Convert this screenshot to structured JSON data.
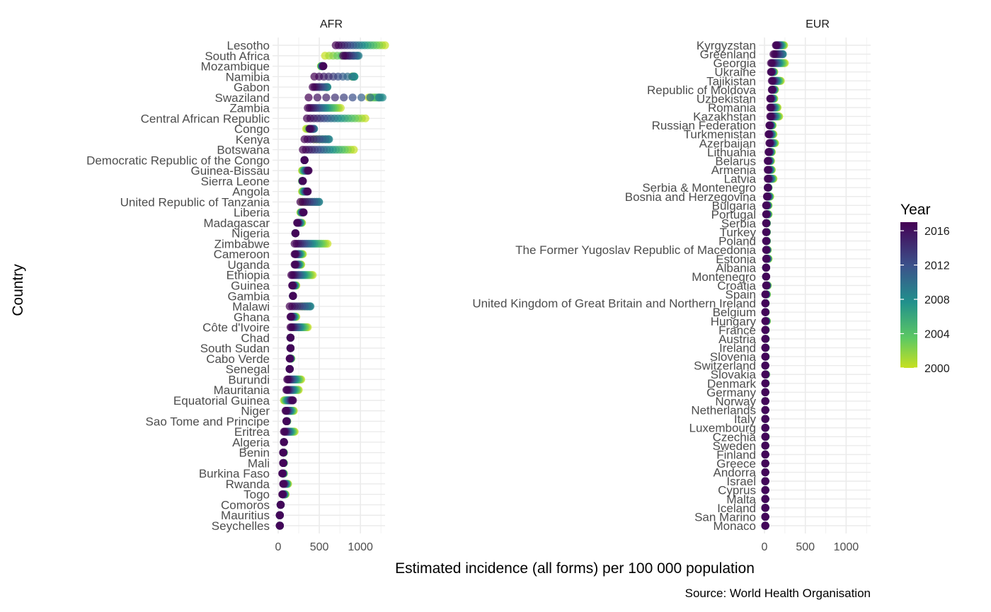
{
  "chart_data": {
    "type": "scatter",
    "title": "",
    "xlabel": "Estimated incidence (all forms) per 100 000 population",
    "ylabel": "Country",
    "caption": "Source: World Health Organisation",
    "xlim": [
      0,
      1300
    ],
    "x_ticks": [
      "0",
      "500",
      "1000"
    ],
    "x_tick_values": [
      0,
      500,
      1000
    ],
    "grid": true,
    "legend": {
      "title": "Year",
      "position": "right",
      "type": "colorbar",
      "range": [
        2000,
        2017
      ],
      "ticks": [
        "2000",
        "2004",
        "2008",
        "2012",
        "2016"
      ],
      "tick_values": [
        2000,
        2004,
        2008,
        2012,
        2016
      ]
    },
    "year_range": [
      2000,
      2017
    ],
    "colormap": "viridis-reversed",
    "colors": {
      "year_2000": "#c7e020",
      "year_2008": "#21918c",
      "year_2016": "#440154"
    },
    "facets": [
      {
        "name": "AFR",
        "countries": [
          {
            "name": "Lesotho",
            "v2000": 1300,
            "v2017": 700
          },
          {
            "name": "South Africa",
            "v2000": 570,
            "v2017": 790,
            "peak": 990
          },
          {
            "name": "Mozambique",
            "v2000": 520,
            "v2017": 550
          },
          {
            "name": "Namibia",
            "v2000": 900,
            "v2017": 440,
            "peak": 930
          },
          {
            "name": "Gabon",
            "v2000": 580,
            "v2017": 420,
            "peak": 600
          },
          {
            "name": "Swaziland",
            "v2000": 1100,
            "v2017": 370,
            "peak": 1280
          },
          {
            "name": "Zambia",
            "v2000": 760,
            "v2017": 360
          },
          {
            "name": "Central African Republic",
            "v2000": 1060,
            "v2017": 350
          },
          {
            "name": "Congo",
            "v2000": 340,
            "v2017": 380,
            "peak": 440
          },
          {
            "name": "Kenya",
            "v2000": 440,
            "v2017": 320,
            "peak": 630
          },
          {
            "name": "Botswana",
            "v2000": 920,
            "v2017": 300
          },
          {
            "name": "Democratic Republic of the Congo",
            "v2000": 320,
            "v2017": 320
          },
          {
            "name": "Guinea-Bissau",
            "v2000": 290,
            "v2017": 370
          },
          {
            "name": "Sierra Leone",
            "v2000": 290,
            "v2017": 300
          },
          {
            "name": "Angola",
            "v2000": 290,
            "v2017": 360
          },
          {
            "name": "United Republic of Tanzania",
            "v2000": 290,
            "v2017": 270,
            "peak": 510
          },
          {
            "name": "Liberia",
            "v2000": 270,
            "v2017": 310
          },
          {
            "name": "Madagascar",
            "v2000": 290,
            "v2017": 230
          },
          {
            "name": "Nigeria",
            "v2000": 210,
            "v2017": 210
          },
          {
            "name": "Zimbabwe",
            "v2000": 600,
            "v2017": 200
          },
          {
            "name": "Cameroon",
            "v2000": 300,
            "v2017": 200
          },
          {
            "name": "Uganda",
            "v2000": 280,
            "v2017": 200
          },
          {
            "name": "Ethiopia",
            "v2000": 420,
            "v2017": 160
          },
          {
            "name": "Guinea",
            "v2000": 220,
            "v2017": 170
          },
          {
            "name": "Gambia",
            "v2000": 180,
            "v2017": 180
          },
          {
            "name": "Malawi",
            "v2000": 280,
            "v2017": 140,
            "peak": 400
          },
          {
            "name": "Ghana",
            "v2000": 220,
            "v2017": 150
          },
          {
            "name": "Côte d'Ivoire",
            "v2000": 360,
            "v2017": 150
          },
          {
            "name": "Chad",
            "v2000": 150,
            "v2017": 150
          },
          {
            "name": "South Sudan",
            "v2000": 150,
            "v2017": 150
          },
          {
            "name": "Cabo Verde",
            "v2000": 160,
            "v2017": 140
          },
          {
            "name": "Senegal",
            "v2000": 140,
            "v2017": 140
          },
          {
            "name": "Burundi",
            "v2000": 280,
            "v2017": 110
          },
          {
            "name": "Mauritania",
            "v2000": 250,
            "v2017": 100
          },
          {
            "name": "Equatorial Guinea",
            "v2000": 70,
            "v2017": 180
          },
          {
            "name": "Niger",
            "v2000": 190,
            "v2017": 90
          },
          {
            "name": "Sao Tome and Principe",
            "v2000": 110,
            "v2017": 100
          },
          {
            "name": "Eritrea",
            "v2000": 200,
            "v2017": 70
          },
          {
            "name": "Algeria",
            "v2000": 70,
            "v2017": 70
          },
          {
            "name": "Benin",
            "v2000": 70,
            "v2017": 60
          },
          {
            "name": "Mali",
            "v2000": 70,
            "v2017": 60
          },
          {
            "name": "Burkina Faso",
            "v2000": 70,
            "v2017": 50
          },
          {
            "name": "Rwanda",
            "v2000": 120,
            "v2017": 60
          },
          {
            "name": "Togo",
            "v2000": 90,
            "v2017": 50
          },
          {
            "name": "Comoros",
            "v2000": 30,
            "v2017": 30
          },
          {
            "name": "Mauritius",
            "v2000": 20,
            "v2017": 20
          },
          {
            "name": "Seychelles",
            "v2000": 20,
            "v2017": 20
          }
        ]
      },
      {
        "name": "EUR",
        "countries": [
          {
            "name": "Kyrgyzstan",
            "v2000": 240,
            "v2017": 140
          },
          {
            "name": "Greenland",
            "v2000": 140,
            "v2017": 110,
            "peak": 230
          },
          {
            "name": "Georgia",
            "v2000": 250,
            "v2017": 80
          },
          {
            "name": "Ukraine",
            "v2000": 120,
            "v2017": 80
          },
          {
            "name": "Tajikistan",
            "v2000": 200,
            "v2017": 90
          },
          {
            "name": "Republic of Moldova",
            "v2000": 130,
            "v2017": 90
          },
          {
            "name": "Uzbekistan",
            "v2000": 120,
            "v2017": 70
          },
          {
            "name": "Romania",
            "v2000": 160,
            "v2017": 70
          },
          {
            "name": "Kazakhstan",
            "v2000": 180,
            "v2017": 70
          },
          {
            "name": "Russian Federation",
            "v2000": 100,
            "v2017": 60
          },
          {
            "name": "Turkmenistan",
            "v2000": 110,
            "v2017": 50
          },
          {
            "name": "Azerbaijan",
            "v2000": 130,
            "v2017": 60
          },
          {
            "name": "Lithuania",
            "v2000": 90,
            "v2017": 50
          },
          {
            "name": "Belarus",
            "v2000": 80,
            "v2017": 40
          },
          {
            "name": "Armenia",
            "v2000": 90,
            "v2017": 40
          },
          {
            "name": "Latvia",
            "v2000": 110,
            "v2017": 40
          },
          {
            "name": "Serbia & Montenegro",
            "v2000": 50,
            "v2017": 40
          },
          {
            "name": "Bosnia and Herzegovina",
            "v2000": 70,
            "v2017": 30
          },
          {
            "name": "Bulgaria",
            "v2000": 50,
            "v2017": 20
          },
          {
            "name": "Portugal",
            "v2000": 50,
            "v2017": 20
          },
          {
            "name": "Serbia",
            "v2000": 30,
            "v2017": 20
          },
          {
            "name": "Turkey",
            "v2000": 30,
            "v2017": 20
          },
          {
            "name": "Poland",
            "v2000": 30,
            "v2017": 20
          },
          {
            "name": "The Former Yugoslav Republic of Macedonia",
            "v2000": 40,
            "v2017": 20
          },
          {
            "name": "Estonia",
            "v2000": 50,
            "v2017": 20
          },
          {
            "name": "Albania",
            "v2000": 20,
            "v2017": 20
          },
          {
            "name": "Montenegro",
            "v2000": 20,
            "v2017": 20
          },
          {
            "name": "Croatia",
            "v2000": 40,
            "v2017": 20
          },
          {
            "name": "Spain",
            "v2000": 30,
            "v2017": 10
          },
          {
            "name": "United Kingdom of Great Britain and Northern Ireland",
            "v2000": 15,
            "v2017": 10
          },
          {
            "name": "Belgium",
            "v2000": 15,
            "v2017": 10
          },
          {
            "name": "Hungary",
            "v2000": 30,
            "v2017": 10
          },
          {
            "name": "France",
            "v2000": 15,
            "v2017": 10
          },
          {
            "name": "Austria",
            "v2000": 15,
            "v2017": 10
          },
          {
            "name": "Ireland",
            "v2000": 15,
            "v2017": 10
          },
          {
            "name": "Slovenia",
            "v2000": 15,
            "v2017": 10
          },
          {
            "name": "Switzerland",
            "v2000": 10,
            "v2017": 10
          },
          {
            "name": "Slovakia",
            "v2000": 20,
            "v2017": 10
          },
          {
            "name": "Denmark",
            "v2000": 15,
            "v2017": 10
          },
          {
            "name": "Germany",
            "v2000": 10,
            "v2017": 10
          },
          {
            "name": "Norway",
            "v2000": 10,
            "v2017": 10
          },
          {
            "name": "Netherlands",
            "v2000": 10,
            "v2017": 10
          },
          {
            "name": "Italy",
            "v2000": 10,
            "v2017": 10
          },
          {
            "name": "Luxembourg",
            "v2000": 10,
            "v2017": 10
          },
          {
            "name": "Czechia",
            "v2000": 15,
            "v2017": 10
          },
          {
            "name": "Sweden",
            "v2000": 10,
            "v2017": 10
          },
          {
            "name": "Finland",
            "v2000": 10,
            "v2017": 10
          },
          {
            "name": "Greece",
            "v2000": 10,
            "v2017": 10
          },
          {
            "name": "Andorra",
            "v2000": 10,
            "v2017": 10
          },
          {
            "name": "Israel",
            "v2000": 10,
            "v2017": 10
          },
          {
            "name": "Cyprus",
            "v2000": 10,
            "v2017": 10
          },
          {
            "name": "Malta",
            "v2000": 10,
            "v2017": 10
          },
          {
            "name": "Iceland",
            "v2000": 10,
            "v2017": 10
          },
          {
            "name": "San Marino",
            "v2000": 10,
            "v2017": 10
          },
          {
            "name": "Monaco",
            "v2000": 10,
            "v2017": 10
          }
        ]
      }
    ]
  }
}
